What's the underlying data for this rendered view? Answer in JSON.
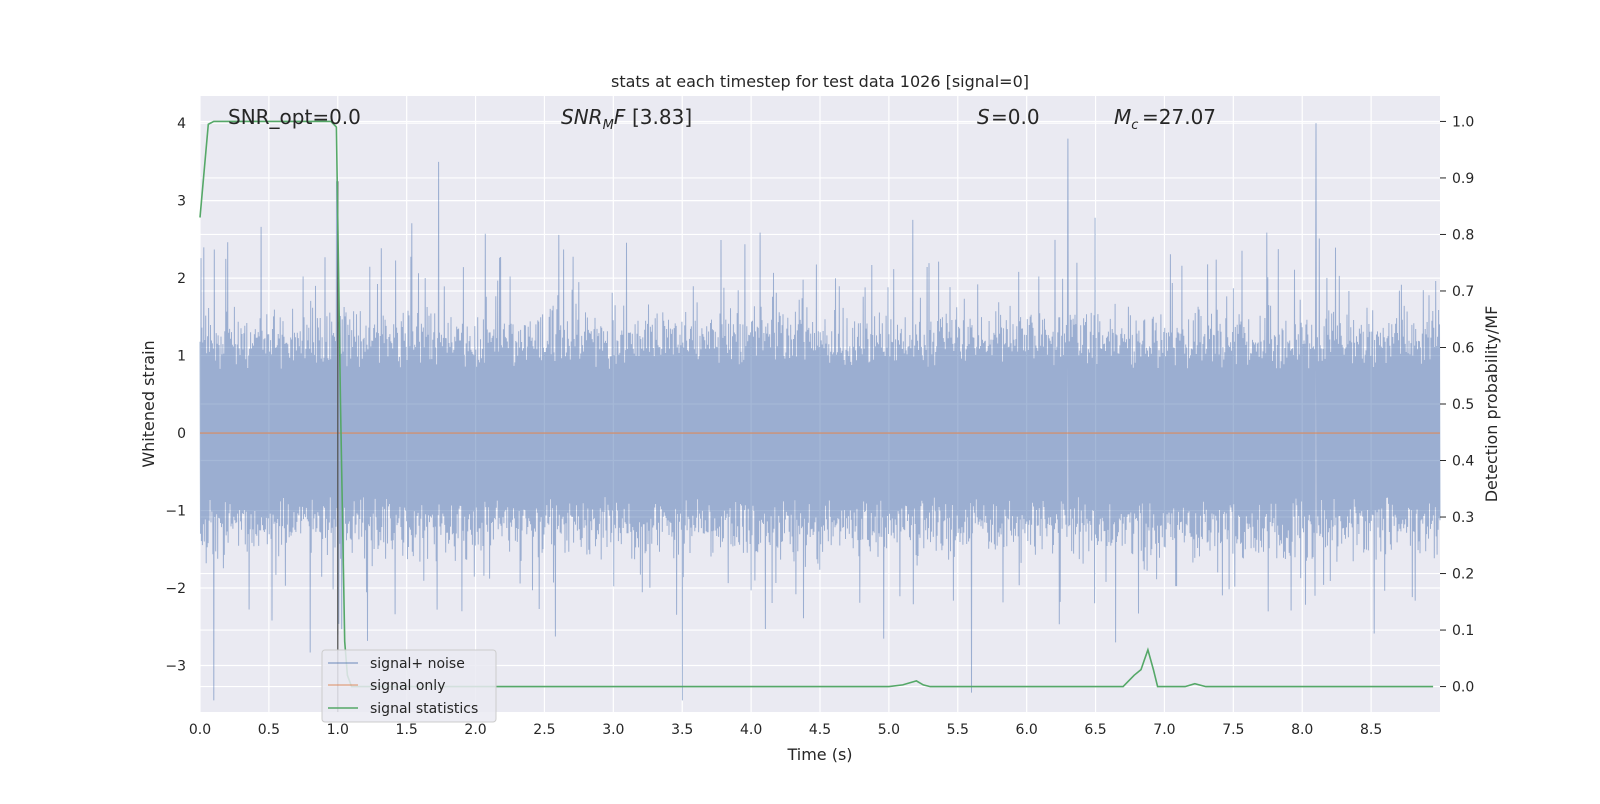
{
  "chart_data": {
    "type": "line",
    "title": "stats at each timestep for test data 1026 [signal=0]",
    "xlabel": "Time (s)",
    "ylabel": "Whitened strain",
    "y2label": "Detection probability/MF",
    "xlim": [
      0.0,
      9.0
    ],
    "ylim": [
      -3.6,
      4.35
    ],
    "y2lim": [
      -0.045,
      1.045
    ],
    "xticks": [
      "0.0",
      "0.5",
      "1.0",
      "1.5",
      "2.0",
      "2.5",
      "3.0",
      "3.5",
      "4.0",
      "4.5",
      "5.0",
      "5.5",
      "6.0",
      "6.5",
      "7.0",
      "7.5",
      "8.0",
      "8.5"
    ],
    "yticks": [
      "4",
      "3",
      "2",
      "1",
      "0",
      "−1",
      "−2",
      "−3"
    ],
    "y2ticks": [
      "1.0",
      "0.9",
      "0.8",
      "0.7",
      "0.6",
      "0.5",
      "0.4",
      "0.3",
      "0.2",
      "0.1",
      "0.0"
    ],
    "grid": true,
    "legend_position": "lower-left",
    "annotations": {
      "snr_opt": "SNR_opt=0.0",
      "snr_mf": "[3.83]",
      "s_value": "=0.0",
      "mc_value": "=27.07"
    },
    "marker_line_x": 1.0,
    "series": [
      {
        "name": "signal+ noise",
        "color": "#4c72b0",
        "axis": "left",
        "envelope_note": "dense noise trace, approx. 1.6 upper / -1.6 lower envelope",
        "peaks": [
          {
            "x": 0.1,
            "y": -3.45
          },
          {
            "x": 0.99,
            "y": 3.25
          },
          {
            "x": 1.0,
            "y": -2.6
          },
          {
            "x": 1.73,
            "y": 3.5
          },
          {
            "x": 3.5,
            "y": -3.45
          },
          {
            "x": 5.6,
            "y": -3.35
          },
          {
            "x": 6.3,
            "y": 3.8
          },
          {
            "x": 8.1,
            "y": 4.0
          }
        ]
      },
      {
        "name": "signal only",
        "color": "#dd8452",
        "axis": "left",
        "x": [
          0.0,
          9.0
        ],
        "y": [
          0.0,
          0.0
        ]
      },
      {
        "name": "signal statistics",
        "color": "#55a868",
        "axis": "right",
        "x": [
          0.0,
          0.06,
          0.1,
          0.2,
          0.5,
          0.8,
          0.95,
          0.99,
          1.02,
          1.05,
          1.07,
          1.1,
          1.2,
          2.0,
          3.0,
          4.0,
          5.0,
          5.1,
          5.2,
          5.25,
          5.3,
          6.0,
          6.7,
          6.78,
          6.83,
          6.88,
          6.92,
          6.95,
          7.0,
          7.15,
          7.22,
          7.3,
          8.0,
          8.95
        ],
        "y": [
          0.83,
          0.995,
          1.0,
          1.0,
          1.0,
          1.0,
          1.0,
          0.99,
          0.5,
          0.08,
          0.02,
          0.0,
          0.0,
          0.0,
          0.0,
          0.0,
          0.0,
          0.003,
          0.01,
          0.003,
          0.0,
          0.0,
          0.0,
          0.02,
          0.03,
          0.065,
          0.03,
          0.0,
          0.0,
          0.0,
          0.005,
          0.0,
          0.0,
          0.0
        ]
      }
    ]
  }
}
